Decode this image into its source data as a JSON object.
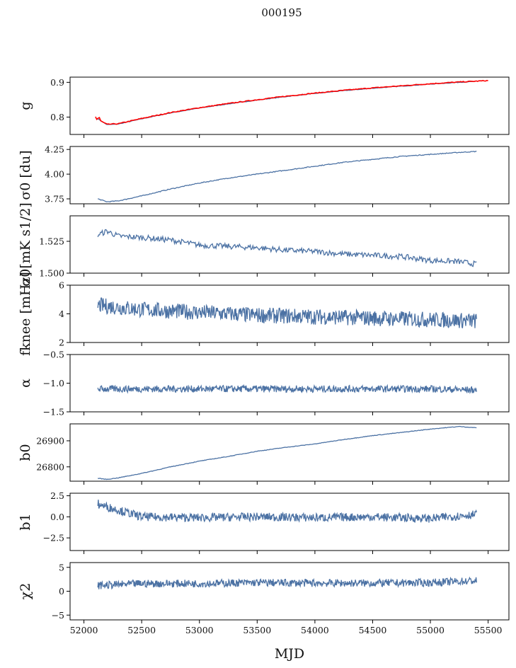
{
  "figure": {
    "suptitle": "000195",
    "xlabel": "MJD",
    "x_ticks": [
      52000,
      52500,
      53000,
      53500,
      54000,
      54500,
      55000,
      55500
    ],
    "xlim": [
      51880,
      55680
    ]
  },
  "colors": {
    "series": "#4c72a4",
    "overlay": "#ff0000",
    "axis": "#000000"
  },
  "chart_data": [
    {
      "type": "line",
      "ylabel": "g",
      "ylim": [
        0.75,
        0.915
      ],
      "yticks": [
        0.8,
        0.9
      ],
      "ytick_labels": [
        "0.8",
        "0.9"
      ],
      "series": [
        {
          "name": "",
          "x": [
            52120,
            52200,
            52300,
            52500,
            52750,
            53000,
            53250,
            53500,
            53750,
            54000,
            54250,
            54500,
            54750,
            55000,
            55250,
            55400
          ],
          "y": [
            0.795,
            0.778,
            0.78,
            0.795,
            0.812,
            0.826,
            0.838,
            0.849,
            0.859,
            0.868,
            0.876,
            0.883,
            0.889,
            0.895,
            0.9,
            0.903
          ]
        }
      ],
      "overlay": {
        "x": [
          52100,
          52200,
          52300,
          52500,
          52750,
          53000,
          53250,
          53500,
          53750,
          54000,
          54250,
          54500,
          54750,
          55000,
          55250,
          55500
        ],
        "y": [
          0.797,
          0.779,
          0.781,
          0.796,
          0.813,
          0.827,
          0.839,
          0.85,
          0.86,
          0.869,
          0.877,
          0.884,
          0.89,
          0.896,
          0.901,
          0.905
        ]
      }
    },
    {
      "type": "line",
      "ylabel": "σ0 [du]",
      "ylim": [
        3.7,
        4.28
      ],
      "yticks": [
        3.75,
        4.0,
        4.25
      ],
      "ytick_labels": [
        "3.75",
        "4.00",
        "4.25"
      ],
      "series": [
        {
          "name": "",
          "x": [
            52120,
            52200,
            52300,
            52500,
            52750,
            53000,
            53250,
            53500,
            53750,
            54000,
            54250,
            54500,
            54750,
            55000,
            55250,
            55400
          ],
          "y": [
            3.75,
            3.72,
            3.73,
            3.78,
            3.85,
            3.91,
            3.96,
            4.0,
            4.04,
            4.08,
            4.12,
            4.15,
            4.18,
            4.2,
            4.22,
            4.23
          ]
        }
      ]
    },
    {
      "type": "line",
      "ylabel": "σ0[mK s1/2]",
      "ylim": [
        1.5,
        1.545
      ],
      "yticks": [
        1.5,
        1.525
      ],
      "ytick_labels": [
        "1.500",
        "1.525"
      ],
      "series": [
        {
          "name": "",
          "x": [
            52120,
            52200,
            52300,
            52500,
            52750,
            53000,
            53250,
            53500,
            53750,
            54000,
            54250,
            54500,
            54750,
            55000,
            55250,
            55400
          ],
          "y": [
            1.53,
            1.533,
            1.529,
            1.528,
            1.526,
            1.522,
            1.521,
            1.52,
            1.518,
            1.517,
            1.515,
            1.514,
            1.513,
            1.51,
            1.509,
            1.507
          ]
        }
      ]
    },
    {
      "type": "line",
      "ylabel": "fknee [mHz]",
      "ylim": [
        2,
        6
      ],
      "yticks": [
        2,
        4,
        6
      ],
      "ytick_labels": [
        "2",
        "4",
        "6"
      ],
      "series": [
        {
          "name": "",
          "x": [
            52120,
            52500,
            53000,
            53500,
            54000,
            54500,
            55000,
            55400
          ],
          "y": [
            4.6,
            4.3,
            4.1,
            3.9,
            3.8,
            3.7,
            3.6,
            3.5
          ]
        }
      ]
    },
    {
      "type": "line",
      "ylabel": "α",
      "ylim": [
        -1.5,
        -0.5
      ],
      "yticks": [
        -1.5,
        -1.0,
        -0.5
      ],
      "ytick_labels": [
        "−1.5",
        "−1.0",
        "−0.5"
      ],
      "series": [
        {
          "name": "",
          "x": [
            52120,
            52500,
            53000,
            53500,
            54000,
            54500,
            55000,
            55400
          ],
          "y": [
            -1.1,
            -1.1,
            -1.1,
            -1.1,
            -1.1,
            -1.1,
            -1.1,
            -1.12
          ]
        }
      ]
    },
    {
      "type": "line",
      "ylabel": "b0",
      "ylim": [
        26745,
        26965
      ],
      "yticks": [
        26800,
        26900
      ],
      "ytick_labels": [
        "26800",
        "26900"
      ],
      "series": [
        {
          "name": "",
          "x": [
            52120,
            52200,
            52300,
            52500,
            52750,
            53000,
            53250,
            53500,
            53750,
            54000,
            54250,
            54500,
            54750,
            55000,
            55250,
            55400
          ],
          "y": [
            26756,
            26752,
            26758,
            26775,
            26800,
            26822,
            26840,
            26860,
            26875,
            26888,
            26905,
            26920,
            26932,
            26945,
            26955,
            26950
          ]
        }
      ]
    },
    {
      "type": "line",
      "ylabel": "b1",
      "ylim": [
        -4.0,
        2.8
      ],
      "yticks": [
        -2.5,
        0.0,
        2.5
      ],
      "ytick_labels": [
        "−2.5",
        "0.0",
        "2.5"
      ],
      "series": [
        {
          "name": "",
          "x": [
            52120,
            52500,
            53000,
            53500,
            54000,
            54500,
            55000,
            55400
          ],
          "y": [
            1.5,
            0.0,
            -0.1,
            0.0,
            -0.1,
            0.0,
            -0.2,
            0.3
          ]
        }
      ]
    },
    {
      "type": "line",
      "ylabel": "χ2",
      "ylim": [
        -6,
        6
      ],
      "yticks": [
        -5,
        0,
        5
      ],
      "ytick_labels": [
        "−5",
        "0",
        "5"
      ],
      "series": [
        {
          "name": "",
          "x": [
            52120,
            52500,
            53000,
            53500,
            54000,
            54500,
            55000,
            55400
          ],
          "y": [
            1.2,
            1.6,
            1.6,
            1.8,
            1.7,
            1.7,
            1.8,
            2.2
          ]
        }
      ]
    }
  ]
}
